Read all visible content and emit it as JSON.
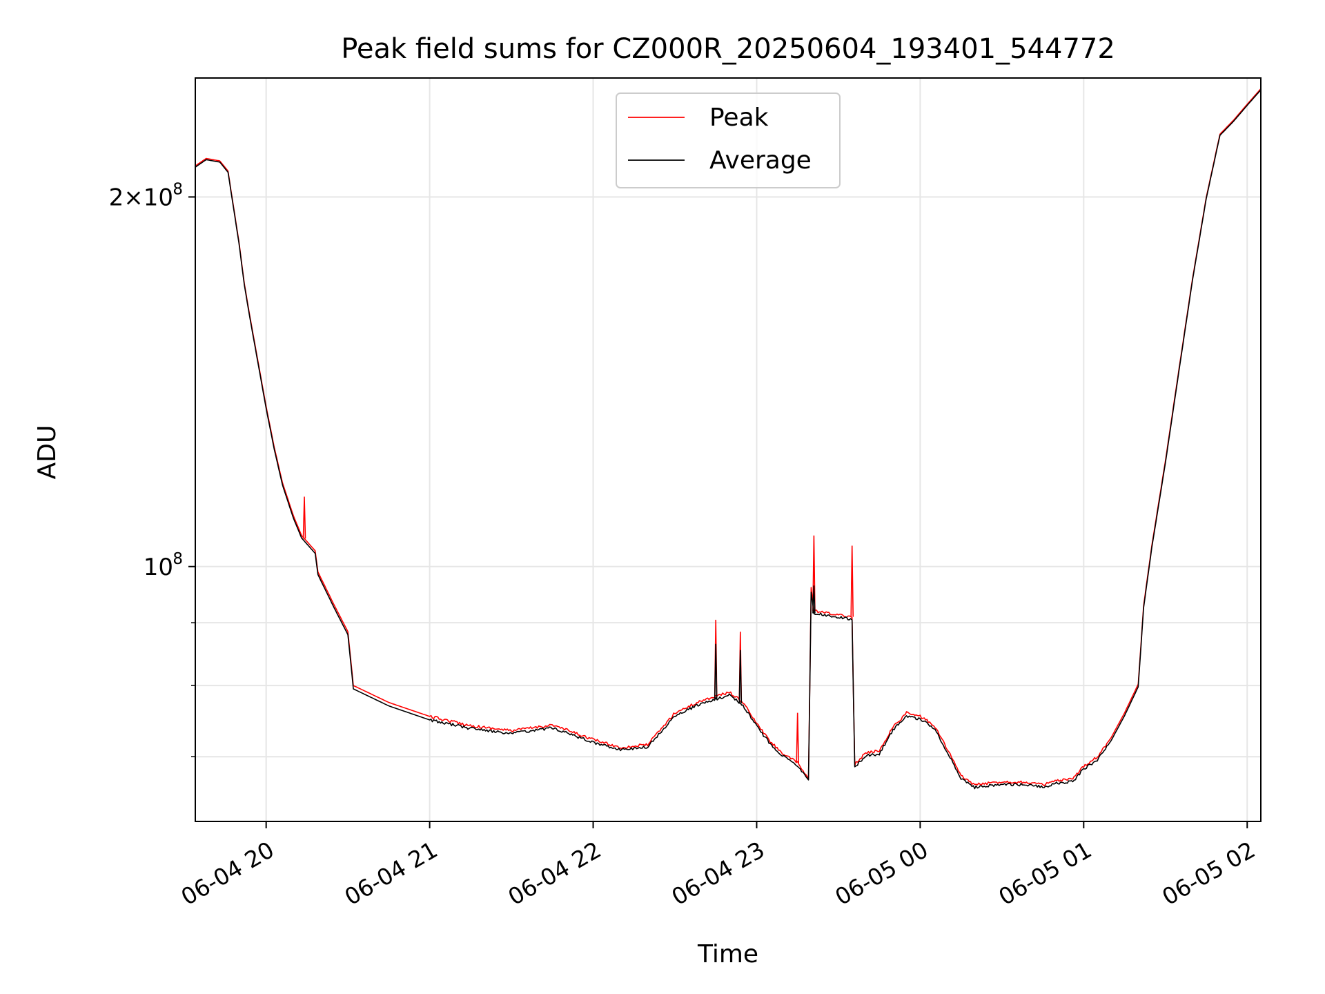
{
  "chart_data": {
    "type": "line",
    "title": "Peak field sums for CZ000R_20250604_193401_544772",
    "xlabel": "Time",
    "ylabel": "ADU",
    "yscale": "log",
    "xlim": [
      "2025-06-04 19:34",
      "2025-06-05 02:05"
    ],
    "ylim": [
      62000000,
      250000000
    ],
    "grid": true,
    "legend": "upper center",
    "x_ticks": [
      "06-04 20",
      "06-04 21",
      "06-04 22",
      "06-04 23",
      "06-05 00",
      "06-05 01",
      "06-05 02"
    ],
    "x_tick_values": [
      "2025-06-04 20:00",
      "2025-06-04 21:00",
      "2025-06-04 22:00",
      "2025-06-04 23:00",
      "2025-06-05 00:00",
      "2025-06-05 01:00",
      "2025-06-05 02:00"
    ],
    "y_major_ticks": [
      {
        "value": 100000000,
        "label": "10",
        "exp": "8"
      },
      {
        "value": 200000000,
        "label": "2×10",
        "exp": "8"
      }
    ],
    "y_minor_ticks": [
      70000000,
      80000000,
      90000000
    ],
    "colors": {
      "peak": "#ff0000",
      "average": "#000000"
    },
    "series": [
      {
        "name": "Peak",
        "color": "#ff0000",
        "points": [
          [
            "2025-06-04 19:34",
            212000000
          ],
          [
            "2025-06-04 19:38",
            215000000
          ],
          [
            "2025-06-04 19:43",
            214000000
          ],
          [
            "2025-06-04 19:46",
            210000000
          ],
          [
            "2025-06-04 19:50",
            184000000
          ],
          [
            "2025-06-04 19:52",
            170000000
          ],
          [
            "2025-06-04 19:54",
            160000000
          ],
          [
            "2025-06-04 19:57",
            147000000
          ],
          [
            "2025-06-04 20:00",
            135000000
          ],
          [
            "2025-06-04 20:03",
            125000000
          ],
          [
            "2025-06-04 20:06",
            117000000
          ],
          [
            "2025-06-04 20:10",
            110000000
          ],
          [
            "2025-06-04 20:13",
            106000000
          ],
          [
            "2025-06-04 20:18",
            103000000
          ],
          [
            "2025-06-04 20:19",
            99000000
          ],
          [
            "2025-06-04 20:25",
            93000000
          ],
          [
            "2025-06-04 20:30",
            88500000
          ],
          [
            "2025-06-04 20:32",
            80000000
          ],
          [
            "2025-06-04 20:45",
            77500000
          ],
          [
            "2025-06-04 21:00",
            75500000
          ],
          [
            "2025-06-04 21:15",
            74200000
          ],
          [
            "2025-06-04 21:30",
            73500000
          ],
          [
            "2025-06-04 21:45",
            74300000
          ],
          [
            "2025-06-04 22:00",
            72300000
          ],
          [
            "2025-06-04 22:10",
            71200000
          ],
          [
            "2025-06-04 22:20",
            71600000
          ],
          [
            "2025-06-04 22:30",
            76000000
          ],
          [
            "2025-06-04 22:40",
            77800000
          ],
          [
            "2025-06-04 22:50",
            79000000
          ],
          [
            "2025-06-04 22:55",
            77500000
          ],
          [
            "2025-06-04 23:00",
            74500000
          ],
          [
            "2025-06-04 23:05",
            72000000
          ],
          [
            "2025-06-04 23:10",
            70300000
          ],
          [
            "2025-06-04 23:15",
            69200000
          ],
          [
            "2025-06-04 23:19",
            67200000
          ],
          [
            "2025-06-04 23:20",
            96000000
          ],
          [
            "2025-06-04 23:21",
            92000000
          ],
          [
            "2025-06-04 23:30",
            91300000
          ],
          [
            "2025-06-04 23:35",
            91000000
          ],
          [
            "2025-06-04 23:36",
            69000000
          ],
          [
            "2025-06-04 23:40",
            70500000
          ],
          [
            "2025-06-04 23:45",
            70800000
          ],
          [
            "2025-06-04 23:50",
            74000000
          ],
          [
            "2025-06-04 23:55",
            76000000
          ],
          [
            "2025-06-05 00:00",
            75500000
          ],
          [
            "2025-06-05 00:05",
            74300000
          ],
          [
            "2025-06-05 00:10",
            71000000
          ],
          [
            "2025-06-05 00:15",
            67500000
          ],
          [
            "2025-06-05 00:20",
            66400000
          ],
          [
            "2025-06-05 00:30",
            66800000
          ],
          [
            "2025-06-05 00:40",
            66700000
          ],
          [
            "2025-06-05 00:45",
            66400000
          ],
          [
            "2025-06-05 00:50",
            66900000
          ],
          [
            "2025-06-05 00:56",
            67100000
          ],
          [
            "2025-06-05 01:00",
            68800000
          ],
          [
            "2025-06-05 01:05",
            70000000
          ],
          [
            "2025-06-05 01:10",
            72500000
          ],
          [
            "2025-06-05 01:15",
            76000000
          ],
          [
            "2025-06-05 01:20",
            80200000
          ],
          [
            "2025-06-05 01:22",
            93000000
          ],
          [
            "2025-06-05 01:25",
            104000000
          ],
          [
            "2025-06-05 01:30",
            122000000
          ],
          [
            "2025-06-05 01:35",
            145000000
          ],
          [
            "2025-06-05 01:40",
            172000000
          ],
          [
            "2025-06-05 01:45",
            200000000
          ],
          [
            "2025-06-05 01:50",
            225000000
          ],
          [
            "2025-06-05 01:55",
            231000000
          ],
          [
            "2025-06-05 02:00",
            238000000
          ],
          [
            "2025-06-05 02:05",
            245000000
          ]
        ],
        "spikes": [
          [
            "2025-06-04 20:14",
            114000000
          ],
          [
            "2025-06-04 22:45",
            90500000
          ],
          [
            "2025-06-04 22:54",
            88500000
          ],
          [
            "2025-06-04 23:15",
            76000000
          ],
          [
            "2025-06-04 23:21",
            106000000
          ],
          [
            "2025-06-04 23:35",
            104000000
          ]
        ]
      },
      {
        "name": "Average",
        "color": "#000000",
        "points": [
          [
            "2025-06-04 19:34",
            211500000
          ],
          [
            "2025-06-04 19:38",
            214500000
          ],
          [
            "2025-06-04 19:43",
            213500000
          ],
          [
            "2025-06-04 19:46",
            209500000
          ],
          [
            "2025-06-04 19:50",
            183500000
          ],
          [
            "2025-06-04 19:52",
            169500000
          ],
          [
            "2025-06-04 19:54",
            159500000
          ],
          [
            "2025-06-04 19:57",
            146500000
          ],
          [
            "2025-06-04 20:00",
            134500000
          ],
          [
            "2025-06-04 20:03",
            124500000
          ],
          [
            "2025-06-04 20:06",
            116500000
          ],
          [
            "2025-06-04 20:10",
            109500000
          ],
          [
            "2025-06-04 20:13",
            105500000
          ],
          [
            "2025-06-04 20:18",
            102500000
          ],
          [
            "2025-06-04 20:19",
            98500000
          ],
          [
            "2025-06-04 20:25",
            92500000
          ],
          [
            "2025-06-04 20:30",
            88000000
          ],
          [
            "2025-06-04 20:32",
            79500000
          ],
          [
            "2025-06-04 20:45",
            77000000
          ],
          [
            "2025-06-04 21:00",
            75000000
          ],
          [
            "2025-06-04 21:15",
            73800000
          ],
          [
            "2025-06-04 21:30",
            73100000
          ],
          [
            "2025-06-04 21:45",
            73900000
          ],
          [
            "2025-06-04 22:00",
            71900000
          ],
          [
            "2025-06-04 22:10",
            70900000
          ],
          [
            "2025-06-04 22:20",
            71300000
          ],
          [
            "2025-06-04 22:30",
            75600000
          ],
          [
            "2025-06-04 22:40",
            77400000
          ],
          [
            "2025-06-04 22:50",
            78600000
          ],
          [
            "2025-06-04 22:55",
            77100000
          ],
          [
            "2025-06-04 23:00",
            74100000
          ],
          [
            "2025-06-04 23:05",
            71700000
          ],
          [
            "2025-06-04 23:10",
            70000000
          ],
          [
            "2025-06-04 23:15",
            68900000
          ],
          [
            "2025-06-04 23:19",
            66900000
          ],
          [
            "2025-06-04 23:20",
            95500000
          ],
          [
            "2025-06-04 23:21",
            91600000
          ],
          [
            "2025-06-04 23:30",
            90900000
          ],
          [
            "2025-06-04 23:35",
            90600000
          ],
          [
            "2025-06-04 23:36",
            68700000
          ],
          [
            "2025-06-04 23:40",
            70100000
          ],
          [
            "2025-06-04 23:45",
            70400000
          ],
          [
            "2025-06-04 23:50",
            73600000
          ],
          [
            "2025-06-04 23:55",
            75600000
          ],
          [
            "2025-06-05 00:00",
            75100000
          ],
          [
            "2025-06-05 00:05",
            73900000
          ],
          [
            "2025-06-05 00:10",
            70600000
          ],
          [
            "2025-06-05 00:15",
            67200000
          ],
          [
            "2025-06-05 00:20",
            66100000
          ],
          [
            "2025-06-05 00:30",
            66500000
          ],
          [
            "2025-06-05 00:40",
            66400000
          ],
          [
            "2025-06-05 00:45",
            66100000
          ],
          [
            "2025-06-05 00:50",
            66600000
          ],
          [
            "2025-06-05 00:56",
            66800000
          ],
          [
            "2025-06-05 01:00",
            68400000
          ],
          [
            "2025-06-05 01:05",
            69600000
          ],
          [
            "2025-06-05 01:10",
            72100000
          ],
          [
            "2025-06-05 01:15",
            75600000
          ],
          [
            "2025-06-05 01:20",
            79800000
          ],
          [
            "2025-06-05 01:22",
            92600000
          ],
          [
            "2025-06-05 01:25",
            103600000
          ],
          [
            "2025-06-05 01:30",
            121500000
          ],
          [
            "2025-06-05 01:35",
            144500000
          ],
          [
            "2025-06-05 01:40",
            171500000
          ],
          [
            "2025-06-05 01:45",
            199500000
          ],
          [
            "2025-06-05 01:50",
            224500000
          ],
          [
            "2025-06-05 01:55",
            230500000
          ],
          [
            "2025-06-05 02:00",
            237500000
          ],
          [
            "2025-06-05 02:05",
            244500000
          ]
        ],
        "spikes": [
          [
            "2025-06-04 22:45",
            86500000
          ],
          [
            "2025-06-04 22:54",
            85500000
          ],
          [
            "2025-06-04 23:21",
            96500000
          ]
        ]
      }
    ]
  }
}
